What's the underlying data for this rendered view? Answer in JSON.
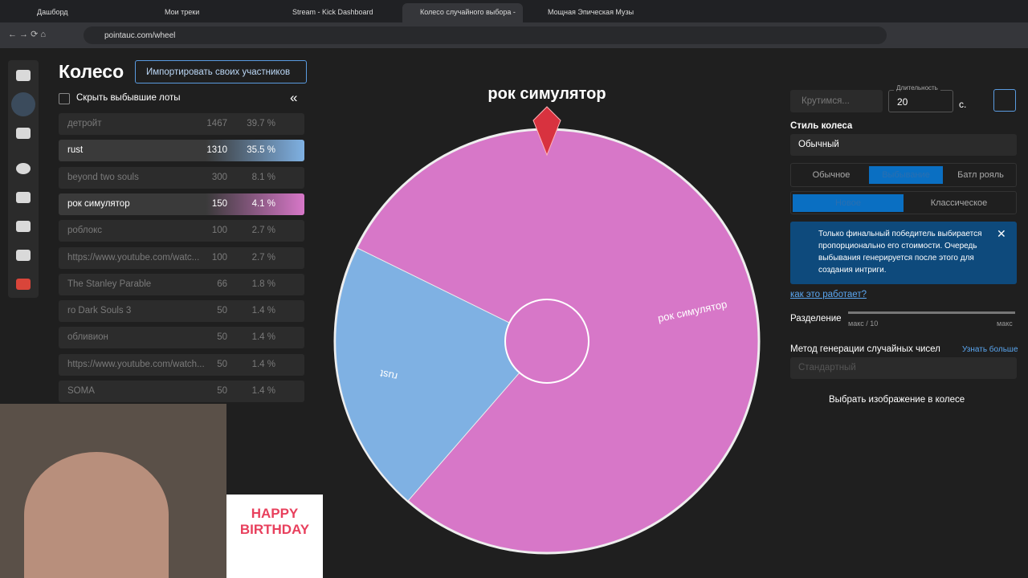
{
  "browser": {
    "tabs": [
      "Дашборд",
      "Мои треки",
      "Stream - Kick Dashboard",
      "Колесо случайного выбора - ",
      "Мощная Эпическая Музы"
    ],
    "url": "pointauc.com/wheel"
  },
  "header": {
    "title": "Колесо",
    "import_button": "Импортировать своих участников",
    "hide_checkbox": "Скрыть выбывшие лоты",
    "collapse": "«"
  },
  "lots": [
    {
      "name": "детройт",
      "amount": 1467,
      "percent": "39.7 %",
      "state": "out"
    },
    {
      "name": "rust",
      "amount": 1310,
      "percent": "35.5 %",
      "state": "blue"
    },
    {
      "name": "beyond two souls",
      "amount": 300,
      "percent": "8.1 %",
      "state": "out"
    },
    {
      "name": "рок симулятор",
      "amount": 150,
      "percent": "4.1 %",
      "state": "pink"
    },
    {
      "name": "роблокс",
      "amount": 100,
      "percent": "2.7 %",
      "state": "out"
    },
    {
      "name": "https://www.youtube.com/watc...",
      "amount": 100,
      "percent": "2.7 %",
      "state": "out"
    },
    {
      "name": "The Stanley Parable",
      "amount": 66,
      "percent": "1.8 %",
      "state": "out"
    },
    {
      "name": "ro Dark Souls 3",
      "amount": 50,
      "percent": "1.4 %",
      "state": "out"
    },
    {
      "name": "обливион",
      "amount": 50,
      "percent": "1.4 %",
      "state": "out"
    },
    {
      "name": "https://www.youtube.com/watch...",
      "amount": 50,
      "percent": "1.4 %",
      "state": "out"
    },
    {
      "name": "SOMA",
      "amount": 50,
      "percent": "1.4 %",
      "state": "out"
    }
  ],
  "wheel": {
    "winner": "рок симулятор",
    "slices": [
      "рок симулятор",
      "rust"
    ]
  },
  "settings": {
    "spin_button": "Крутимся...",
    "duration_label": "Длительность",
    "duration": 20,
    "duration_unit": "с.",
    "style_label": "Стиль колеса",
    "style": "Обычный",
    "modes": [
      "Обычное",
      "Выбывание",
      "Батл рояль"
    ],
    "variants": [
      "Новое",
      "Классическое"
    ],
    "info": "Только финальный победитель выбирается пропорционально его стоимости. Очередь выбывания генерируется после этого для создания интриги.",
    "how_link": "как это работает?",
    "split_label": "Разделение",
    "split_min": "макс / 10",
    "split_max": "макс",
    "rng_label": "Метод генерации случайных чисел",
    "rng_more": "Узнать больше",
    "rng_value": "Стандартный",
    "image_button": "Выбрать изображение в колесе"
  },
  "overlay": {
    "birthday": "HAPPY BIRTHDAY"
  }
}
